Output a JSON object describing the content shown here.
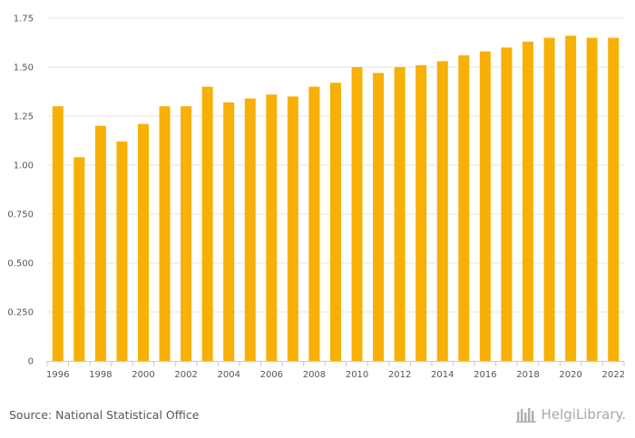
{
  "chart_data": {
    "type": "bar",
    "categories": [
      "1996",
      "1997",
      "1998",
      "1999",
      "2000",
      "2001",
      "2002",
      "2003",
      "2004",
      "2005",
      "2006",
      "2007",
      "2008",
      "2009",
      "2010",
      "2011",
      "2012",
      "2013",
      "2014",
      "2015",
      "2016",
      "2017",
      "2018",
      "2019",
      "2020",
      "2021",
      "2022"
    ],
    "values": [
      1.3,
      1.04,
      1.2,
      1.12,
      1.21,
      1.3,
      1.3,
      1.4,
      1.32,
      1.34,
      1.36,
      1.35,
      1.4,
      1.42,
      1.5,
      1.47,
      1.5,
      1.51,
      1.53,
      1.56,
      1.58,
      1.6,
      1.63,
      1.65,
      1.66,
      1.65,
      1.65
    ],
    "x_tick_labels": [
      "1996",
      "1998",
      "2000",
      "2002",
      "2004",
      "2006",
      "2008",
      "2010",
      "2012",
      "2014",
      "2016",
      "2018",
      "2020",
      "2022"
    ],
    "y_ticks": [
      0,
      0.25,
      0.5,
      0.75,
      1.0,
      1.25,
      1.5,
      1.75
    ],
    "y_tick_labels": [
      "0",
      "0.250",
      "0.500",
      "0.750",
      "1.00",
      "1.25",
      "1.50",
      "1.75"
    ],
    "ylim": [
      0,
      1.75
    ],
    "grid": true,
    "bar_color": "#F7B006"
  },
  "footer": {
    "source": "Source: National Statistical Office",
    "brand": "HelgiLibrary."
  }
}
